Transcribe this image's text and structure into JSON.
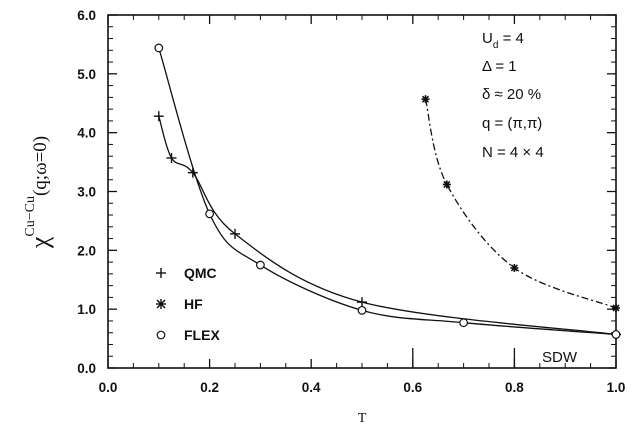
{
  "chart_data": {
    "type": "line",
    "xlabel": "T",
    "ylabel": "χ^{Cu-Cu}(q;ω=0)",
    "ylabel_main": "χ",
    "ylabel_sup": "Cu−Cu",
    "ylabel_args": "(q;ω=0)",
    "xlim": [
      0.0,
      1.0
    ],
    "ylim": [
      0.0,
      6.0
    ],
    "xticks": [
      "0.0",
      "0.2",
      "0.4",
      "0.6",
      "0.8",
      "1.0"
    ],
    "yticks": [
      "0.0",
      "1.0",
      "2.0",
      "3.0",
      "4.0",
      "5.0",
      "6.0"
    ],
    "grid": false,
    "legend_position": "bottom-left",
    "series": [
      {
        "name": "QMC",
        "marker": "plus",
        "line": "solid",
        "points": [
          [
            0.1,
            4.28
          ],
          [
            0.125,
            3.57
          ],
          [
            0.167,
            3.32
          ],
          [
            0.25,
            2.28
          ],
          [
            0.5,
            1.12
          ],
          [
            1.0,
            0.57
          ]
        ]
      },
      {
        "name": "HF",
        "marker": "star",
        "line": "dash-dot",
        "points": [
          [
            0.625,
            4.57
          ],
          [
            0.667,
            3.12
          ],
          [
            0.8,
            1.7
          ],
          [
            1.0,
            1.02
          ]
        ]
      },
      {
        "name": "FLEX",
        "marker": "circle",
        "line": "solid",
        "points": [
          [
            0.1,
            5.44
          ],
          [
            0.2,
            2.62
          ],
          [
            0.3,
            1.75
          ],
          [
            0.5,
            0.98
          ],
          [
            0.7,
            0.77
          ],
          [
            1.0,
            0.57
          ]
        ]
      }
    ],
    "annotations": [
      {
        "text": "U_d = 4",
        "main": "U",
        "sub": "d",
        "rest": " = 4"
      },
      {
        "text": "Δ = 1"
      },
      {
        "text": "δ ≈ 20 %"
      },
      {
        "text": "q = (π,π)"
      },
      {
        "text": "N = 4 × 4"
      }
    ],
    "region_label": "SDW",
    "vertical_markers_x": [
      0.6,
      0.8
    ]
  }
}
